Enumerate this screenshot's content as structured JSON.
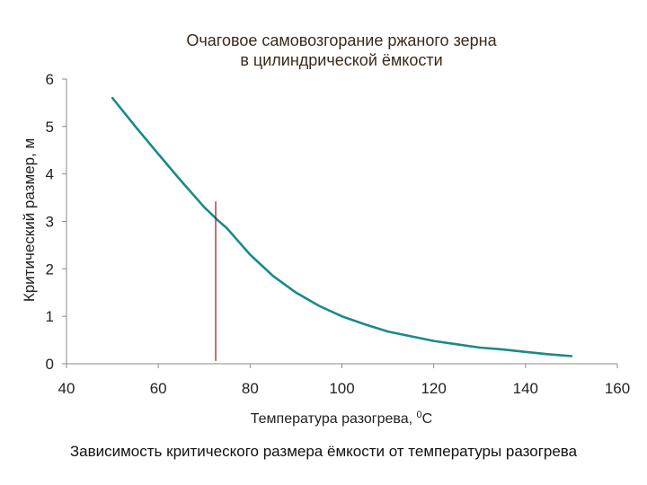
{
  "chart_data": {
    "type": "line",
    "title_lines": [
      "Очаговое самовозгорание ржаного зерна",
      "в цилиндрической ёмкости"
    ],
    "xlabel": "Температура разогрева, ",
    "xlabel_sup": "0",
    "xlabel_unit": "С",
    "ylabel": "Критический размер, м",
    "xlim": [
      40,
      160
    ],
    "ylim": [
      0,
      6
    ],
    "x_ticks": [
      "40",
      "60",
      "80",
      "100",
      "120",
      "140",
      "160"
    ],
    "y_ticks": [
      "0",
      "1",
      "2",
      "3",
      "4",
      "5",
      "6"
    ],
    "series": [
      {
        "color": "#1a8a8a",
        "x": [
          50,
          55,
          60,
          65,
          70,
          73,
          75,
          80,
          85,
          90,
          95,
          100,
          105,
          110,
          115,
          120,
          125,
          130,
          135,
          140,
          145,
          150
        ],
        "values": [
          5.6,
          5.0,
          4.42,
          3.85,
          3.3,
          3.02,
          2.85,
          2.3,
          1.85,
          1.5,
          1.22,
          1.0,
          0.83,
          0.68,
          0.58,
          0.48,
          0.41,
          0.34,
          0.3,
          0.25,
          0.2,
          0.16
        ]
      }
    ],
    "marker_line": {
      "x": 72.5,
      "y_from": 0.06,
      "y_to": 3.42,
      "color": "#8b1a1a"
    },
    "grid": false,
    "legend": "none"
  },
  "caption": "Зависимость критического размера ёмкости от температуры разогрева"
}
